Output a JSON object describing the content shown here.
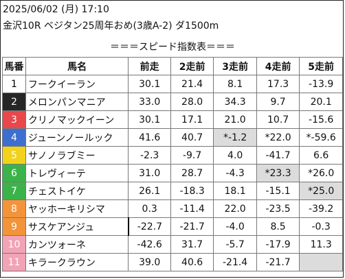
{
  "header": {
    "datetime": "2025/06/02 (月) 17:10",
    "race": "金沢10R ベジタン25周年おめ(3歳A-2) ダ1500m"
  },
  "subtitle": "＝＝＝スピード指数表＝＝＝",
  "table": {
    "headers": [
      "馬番",
      "馬名",
      "前走",
      "2走前",
      "3走前",
      "4走前",
      "5走前"
    ],
    "rows": [
      {
        "no": "1",
        "name": "フークイーラン",
        "bg": "#ffffff",
        "fg": "#000000",
        "v": [
          "30.1",
          "21.4",
          "8.1",
          "17.3",
          "-13.9"
        ],
        "hl": [
          false,
          false,
          false,
          false,
          false
        ]
      },
      {
        "no": "2",
        "name": "メロンパンマニア",
        "bg": "#262626",
        "fg": "#ffffff",
        "v": [
          "33.0",
          "28.0",
          "34.3",
          "9.7",
          "20.1"
        ],
        "hl": [
          false,
          false,
          false,
          false,
          false
        ]
      },
      {
        "no": "3",
        "name": "クリノマックイーン",
        "bg": "#e8474c",
        "fg": "#ffffff",
        "v": [
          "30.1",
          "17.1",
          "21.0",
          "10.7",
          "-15.6"
        ],
        "hl": [
          false,
          false,
          false,
          false,
          false
        ]
      },
      {
        "no": "4",
        "name": "ジューンノールック",
        "bg": "#3d6fd0",
        "fg": "#ffffff",
        "v": [
          "41.6",
          "40.7",
          "*-1.2",
          "*22.0",
          "*-59.6"
        ],
        "hl": [
          false,
          false,
          true,
          false,
          false
        ]
      },
      {
        "no": "5",
        "name": "サノノラブミー",
        "bg": "#f2d21d",
        "fg": "#ffffff",
        "v": [
          "-2.3",
          "-9.7",
          "4.0",
          "-41.7",
          "6.6"
        ],
        "hl": [
          false,
          false,
          false,
          false,
          false
        ]
      },
      {
        "no": "6",
        "name": "トレヴィーテ",
        "bg": "#3cb34a",
        "fg": "#ffffff",
        "v": [
          "31.0",
          "28.7",
          "-4.3",
          "*23.3",
          "*26.0"
        ],
        "hl": [
          false,
          false,
          false,
          true,
          false
        ]
      },
      {
        "no": "7",
        "name": "チェストイケ",
        "bg": "#3cb34a",
        "fg": "#ffffff",
        "v": [
          "26.1",
          "-18.3",
          "18.1",
          "-15.1",
          "*25.0"
        ],
        "hl": [
          false,
          false,
          false,
          false,
          true
        ]
      },
      {
        "no": "8",
        "name": "ヤッホーキリシマ",
        "bg": "#f3943a",
        "fg": "#ffffff",
        "v": [
          "0.3",
          "-11.4",
          "22.0",
          "-23.5",
          "-39.2"
        ],
        "hl": [
          false,
          false,
          false,
          false,
          false
        ]
      },
      {
        "no": "9",
        "name": "サスケアンジュ",
        "bg": "#f3943a",
        "fg": "#ffffff",
        "v": [
          "-22.7",
          "-21.7",
          "-4.0",
          "8.5",
          "-0.3"
        ],
        "hl": [
          false,
          false,
          false,
          false,
          false
        ]
      },
      {
        "no": "10",
        "name": "カンツォーネ",
        "bg": "#f2a3b5",
        "fg": "#ffffff",
        "v": [
          "-42.6",
          "31.7",
          "-5.7",
          "-17.9",
          "11.3"
        ],
        "hl": [
          false,
          false,
          false,
          false,
          false
        ]
      },
      {
        "no": "11",
        "name": "キラークラウン",
        "bg": "#f2a3b5",
        "fg": "#ffffff",
        "v": [
          "39.0",
          "40.6",
          "-21.4",
          "-21.7",
          ""
        ],
        "hl": [
          false,
          false,
          false,
          false,
          true
        ]
      }
    ]
  },
  "colors": {
    "highlight_cell": "#dcdcdc",
    "grid": "#777777"
  }
}
